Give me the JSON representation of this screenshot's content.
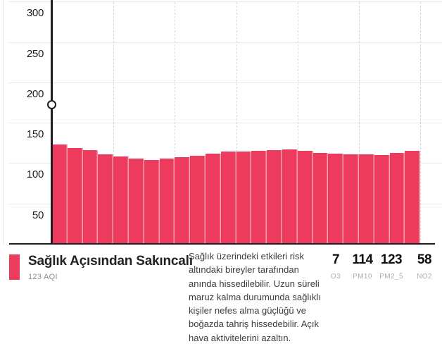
{
  "accent_color": "#ed3b5d",
  "bar_separator_color": "#f4a0b1",
  "chart_data": {
    "type": "bar",
    "title": "",
    "xlabel": "",
    "ylabel": "",
    "categories": [],
    "values": [
      123,
      119,
      116,
      111,
      108,
      106,
      104,
      106,
      107,
      109,
      112,
      114,
      114,
      115,
      116,
      117,
      115,
      113,
      112,
      111,
      111,
      110,
      113,
      115
    ],
    "yticks": [
      300,
      250,
      200,
      150,
      100,
      50
    ],
    "ylim": [
      0,
      302
    ],
    "grid": true,
    "x_dashed_gridline_every_bars": 4,
    "bar_color": "#ed3b5d",
    "legend_position": "bottom"
  },
  "legend": {
    "title": "Sağlık Açısından Sakıncalı",
    "subtitle": "123 AQI",
    "description": "Sağlık üzerindeki etkileri risk altındaki bireyler tarafından anında hissedilebilir. Uzun süreli maruz kalma durumunda sağlıklı kişiler nefes alma güçlüğü ve boğazda tahriş hissedebilir. Açık hava aktivitelerini azaltın."
  },
  "pollutants": [
    {
      "value": "7",
      "label": "O3"
    },
    {
      "value": "114",
      "label": "PM10"
    },
    {
      "value": "123",
      "label": "PM2_5"
    },
    {
      "value": "58",
      "label": "NO2"
    }
  ]
}
